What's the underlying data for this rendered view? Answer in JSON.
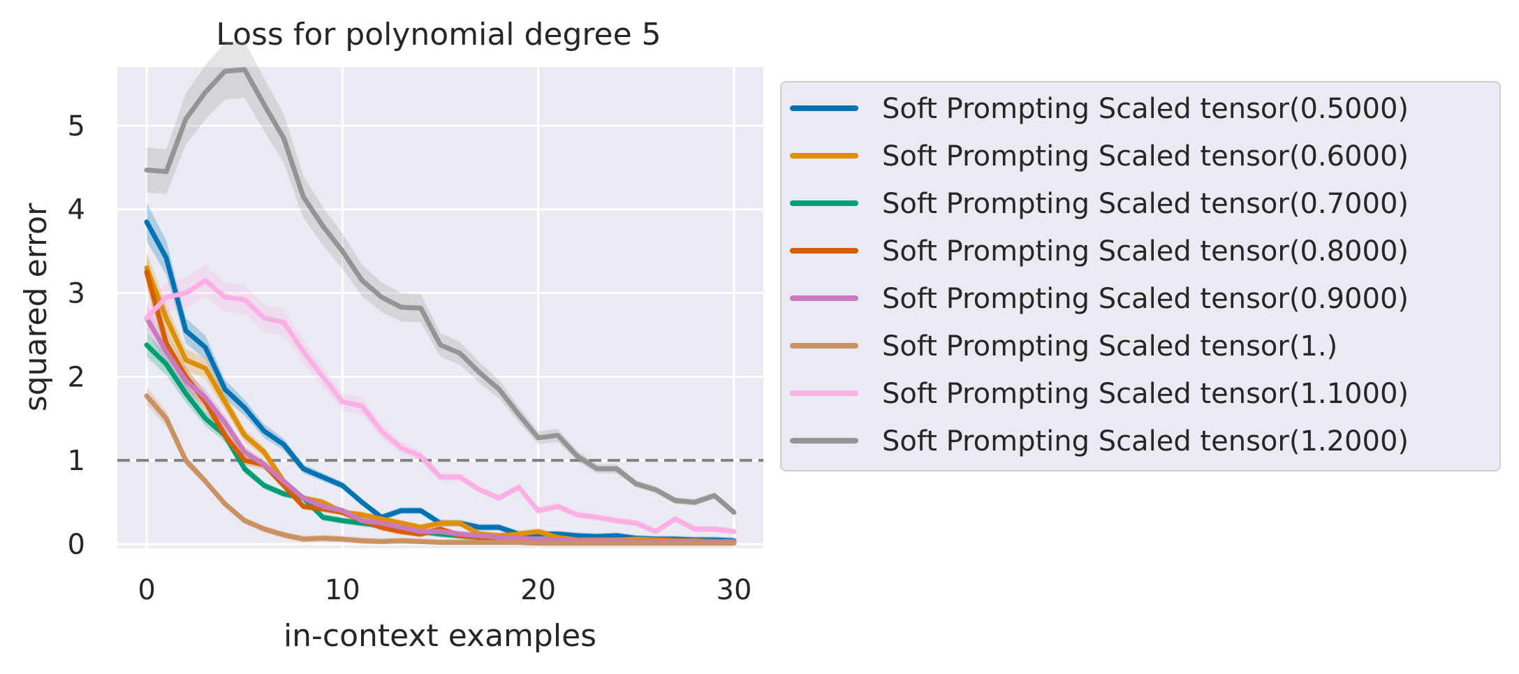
{
  "chart_data": {
    "type": "line",
    "title": "Loss for polynomial degree 5",
    "xlabel": "in-context examples",
    "ylabel": "squared error",
    "xlim": [
      -1.5,
      31.5
    ],
    "ylim": [
      -0.05,
      5.7
    ],
    "xticks": [
      0,
      10,
      20,
      30
    ],
    "yticks": [
      0,
      1,
      2,
      3,
      4,
      5
    ],
    "grid": true,
    "legend_position": "outside-right",
    "reference_line": {
      "y": 1,
      "style": "dashed",
      "color": "#808080"
    },
    "x": [
      0,
      1,
      2,
      3,
      4,
      5,
      6,
      7,
      8,
      9,
      10,
      11,
      12,
      13,
      14,
      15,
      16,
      17,
      18,
      19,
      20,
      21,
      22,
      23,
      24,
      25,
      26,
      27,
      28,
      29,
      30
    ],
    "series": [
      {
        "name": "Soft Prompting Scaled tensor(0.5000)",
        "color": "#0173b2",
        "values": [
          3.85,
          3.42,
          2.55,
          2.35,
          1.85,
          1.63,
          1.35,
          1.19,
          0.9,
          0.8,
          0.7,
          0.5,
          0.32,
          0.4,
          0.4,
          0.25,
          0.25,
          0.2,
          0.2,
          0.12,
          0.12,
          0.12,
          0.1,
          0.09,
          0.1,
          0.07,
          0.06,
          0.06,
          0.05,
          0.05,
          0.04
        ]
      },
      {
        "name": "Soft Prompting Scaled tensor(0.6000)",
        "color": "#de8f05",
        "values": [
          3.3,
          2.7,
          2.2,
          2.1,
          1.7,
          1.3,
          1.1,
          0.75,
          0.55,
          0.5,
          0.38,
          0.35,
          0.3,
          0.25,
          0.2,
          0.25,
          0.25,
          0.12,
          0.1,
          0.12,
          0.15,
          0.08,
          0.05,
          0.05,
          0.05,
          0.06,
          0.05,
          0.04,
          0.04,
          0.03,
          0.03
        ]
      },
      {
        "name": "Soft Prompting Scaled tensor(0.7000)",
        "color": "#029e73",
        "values": [
          2.38,
          2.15,
          1.8,
          1.5,
          1.3,
          0.9,
          0.7,
          0.6,
          0.55,
          0.32,
          0.28,
          0.25,
          0.22,
          0.18,
          0.15,
          0.12,
          0.1,
          0.08,
          0.07,
          0.06,
          0.05,
          0.04,
          0.04,
          0.03,
          0.03,
          0.03,
          0.03,
          0.02,
          0.02,
          0.02,
          0.02
        ]
      },
      {
        "name": "Soft Prompting Scaled tensor(0.8000)",
        "color": "#d55e00",
        "values": [
          3.25,
          2.4,
          2.0,
          1.7,
          1.3,
          1.0,
          0.95,
          0.7,
          0.45,
          0.42,
          0.38,
          0.28,
          0.2,
          0.15,
          0.12,
          0.18,
          0.1,
          0.08,
          0.08,
          0.06,
          0.05,
          0.04,
          0.04,
          0.03,
          0.03,
          0.03,
          0.03,
          0.02,
          0.02,
          0.02,
          0.02
        ]
      },
      {
        "name": "Soft Prompting Scaled tensor(0.9000)",
        "color": "#cc78bc",
        "values": [
          2.7,
          2.3,
          1.95,
          1.75,
          1.45,
          1.1,
          0.95,
          0.75,
          0.55,
          0.45,
          0.4,
          0.28,
          0.25,
          0.2,
          0.15,
          0.15,
          0.12,
          0.1,
          0.08,
          0.07,
          0.06,
          0.05,
          0.04,
          0.04,
          0.04,
          0.03,
          0.03,
          0.03,
          0.02,
          0.02,
          0.02
        ]
      },
      {
        "name": "Soft Prompting Scaled tensor(1.)",
        "color": "#ca9161",
        "values": [
          1.77,
          1.5,
          1.0,
          0.75,
          0.48,
          0.28,
          0.18,
          0.11,
          0.06,
          0.07,
          0.06,
          0.04,
          0.03,
          0.04,
          0.03,
          0.02,
          0.02,
          0.02,
          0.02,
          0.02,
          0.01,
          0.01,
          0.01,
          0.01,
          0.01,
          0.01,
          0.01,
          0.01,
          0.01,
          0.01,
          0.01
        ]
      },
      {
        "name": "Soft Prompting Scaled tensor(1.1000)",
        "color": "#fbafe4",
        "values": [
          2.7,
          2.95,
          3.0,
          3.15,
          2.95,
          2.92,
          2.7,
          2.65,
          2.3,
          2.0,
          1.7,
          1.65,
          1.35,
          1.15,
          1.05,
          0.8,
          0.8,
          0.65,
          0.55,
          0.68,
          0.4,
          0.45,
          0.35,
          0.32,
          0.28,
          0.25,
          0.15,
          0.3,
          0.18,
          0.18,
          0.15
        ]
      },
      {
        "name": "Soft Prompting Scaled tensor(1.2000)",
        "color": "#949494",
        "values": [
          4.47,
          4.45,
          5.08,
          5.4,
          5.65,
          5.67,
          5.25,
          4.85,
          4.15,
          3.8,
          3.5,
          3.15,
          2.95,
          2.83,
          2.82,
          2.38,
          2.28,
          2.05,
          1.85,
          1.55,
          1.27,
          1.3,
          1.05,
          0.9,
          0.9,
          0.72,
          0.65,
          0.52,
          0.5,
          0.58,
          0.38
        ]
      }
    ]
  }
}
